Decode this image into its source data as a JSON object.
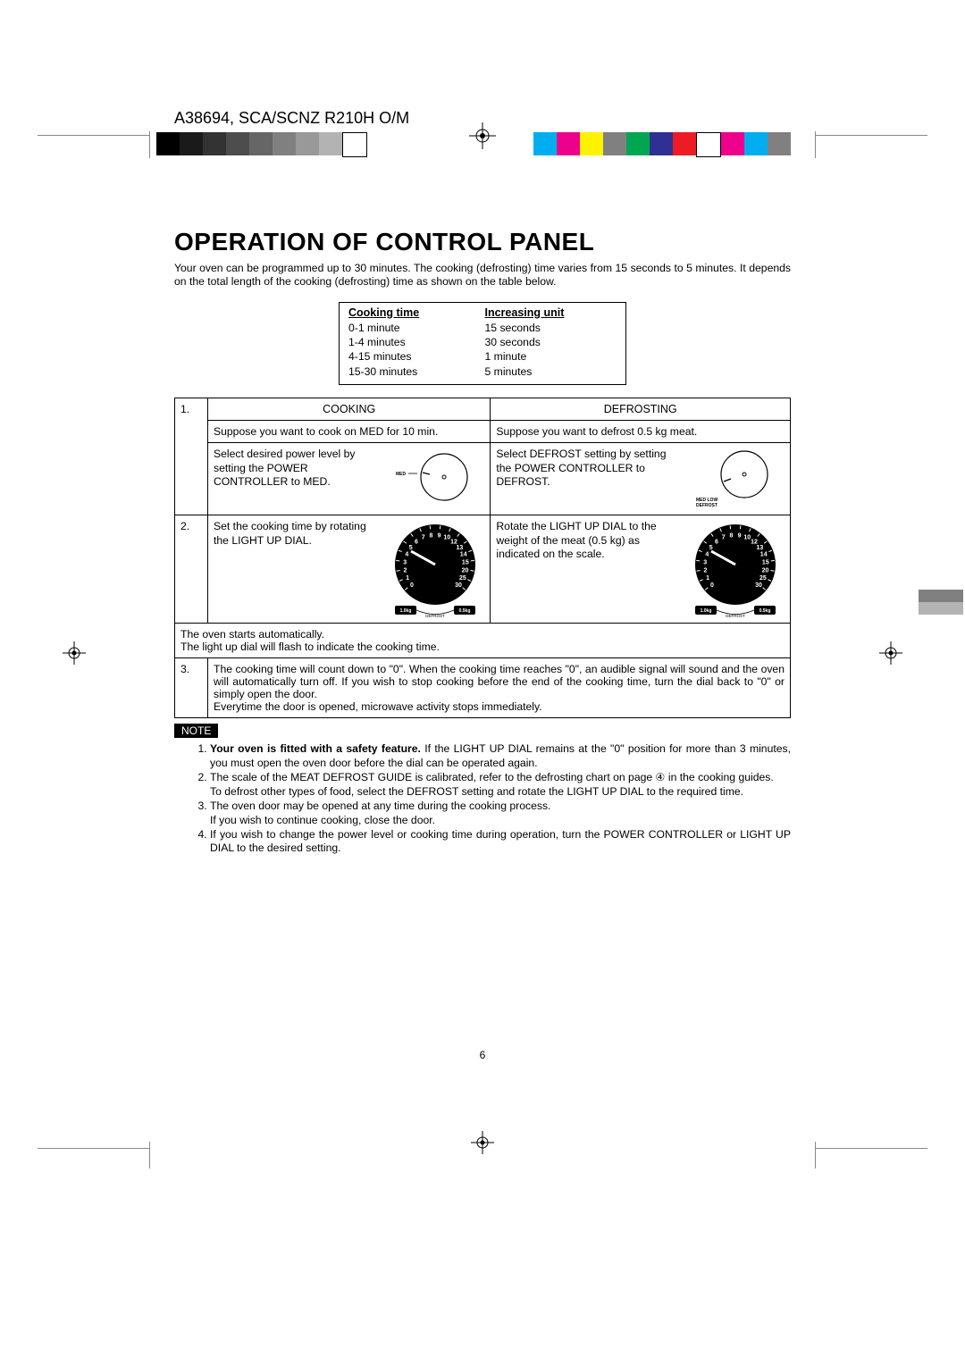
{
  "header": {
    "doc_id": "A38694, SCA/SCNZ R210H O/M"
  },
  "print_marks": {
    "gray_swatches": [
      "#000000",
      "#1a1a1a",
      "#333333",
      "#4d4d4d",
      "#666666",
      "#808080",
      "#999999",
      "#b3b3b3",
      "#ffffff"
    ],
    "gray_box_border": "#000000",
    "color_swatches": [
      "#00aeef",
      "#ec008c",
      "#fff200",
      "#808080",
      "#00a651",
      "#2e3192",
      "#ed1c24",
      "#ffffff",
      "#ec008c",
      "#00aeef",
      "#808080"
    ],
    "side_grays": [
      "#808080",
      "#b3b3b3"
    ]
  },
  "title": "OPERATION OF CONTROL PANEL",
  "intro": "Your oven can be programmed up to 30 minutes. The cooking (defrosting) time varies from 15 seconds to 5 minutes. It depends on the total length of the cooking (defrosting) time as shown on the table below.",
  "time_table": {
    "headers": [
      "Cooking time",
      "Increasing unit"
    ],
    "rows": [
      [
        "0-1 minute",
        "15 seconds"
      ],
      [
        "1-4 minutes",
        "30 seconds"
      ],
      [
        "4-15 minutes",
        "1 minute"
      ],
      [
        "15-30 minutes",
        "5 minutes"
      ]
    ]
  },
  "main": {
    "row1": {
      "num": "1.",
      "cooking_header": "COOKING",
      "defrost_header": "DEFROSTING",
      "cooking_example": "Suppose you want to cook on MED for 10 min.",
      "defrost_example": "Suppose you want to defrost 0.5 kg meat.",
      "cooking_step": "Select desired power level by setting the POWER CONTROLLER to MED.",
      "defrost_step": "Select DEFROST setting by setting the POWER CONTROLLER to DEFROST.",
      "dial1_label": "MED",
      "dial2_label_a": "MED LOW",
      "dial2_label_b": "DEFROST"
    },
    "row2": {
      "num": "2.",
      "cooking_step": "Set the cooking time by rotating the LIGHT UP DIAL.",
      "defrost_step": "Rotate the LIGHT UP DIAL to the weight of the meat (0.5 kg) as indicated on the scale.",
      "big_dial": {
        "numbers": [
          "0",
          "1",
          "2",
          "3",
          "4",
          "5",
          "6",
          "7",
          "8",
          "9",
          "10",
          "12",
          "13",
          "14",
          "15",
          "20",
          "25",
          "30"
        ],
        "bottom_left": "1.0kg",
        "bottom_right": "0.5kg",
        "bottom_label": "DEFROST",
        "fill": "#000000",
        "text": "#ffffff"
      }
    },
    "row_auto": "The oven starts automatically.\nThe light up dial will flash to indicate the cooking time.",
    "row3": {
      "num": "3.",
      "text": "The cooking time will count down to \"0\". When the cooking time reaches \"0\", an audible signal will sound and the oven will automatically turn off. If you wish to stop cooking before the end of the cooking time, turn the dial back to \"0\" or simply open the door.\nEverytime the door is opened, microwave activity stops immediately."
    }
  },
  "note_label": "NOTE",
  "notes": [
    {
      "bold": "Your oven is fitted with a safety feature.",
      "rest": " If the LIGHT UP DIAL remains at the \"0\" position for more than 3 minutes, you must open the oven door before the dial can be operated again."
    },
    {
      "text": "The scale of the MEAT DEFROST GUIDE is calibrated, refer to the defrosting chart on page ④ in the cooking guides.\nTo defrost other types of food, select the DEFROST setting and rotate the LIGHT UP DIAL to the required time."
    },
    {
      "text": "The oven door may be opened at any time during the cooking process.\nIf you wish to continue cooking, close the door."
    },
    {
      "text": "If you wish to change the power level or cooking time during operation, turn the POWER CONTROLLER or LIGHT UP DIAL to the desired setting."
    }
  ],
  "page_number": "6"
}
